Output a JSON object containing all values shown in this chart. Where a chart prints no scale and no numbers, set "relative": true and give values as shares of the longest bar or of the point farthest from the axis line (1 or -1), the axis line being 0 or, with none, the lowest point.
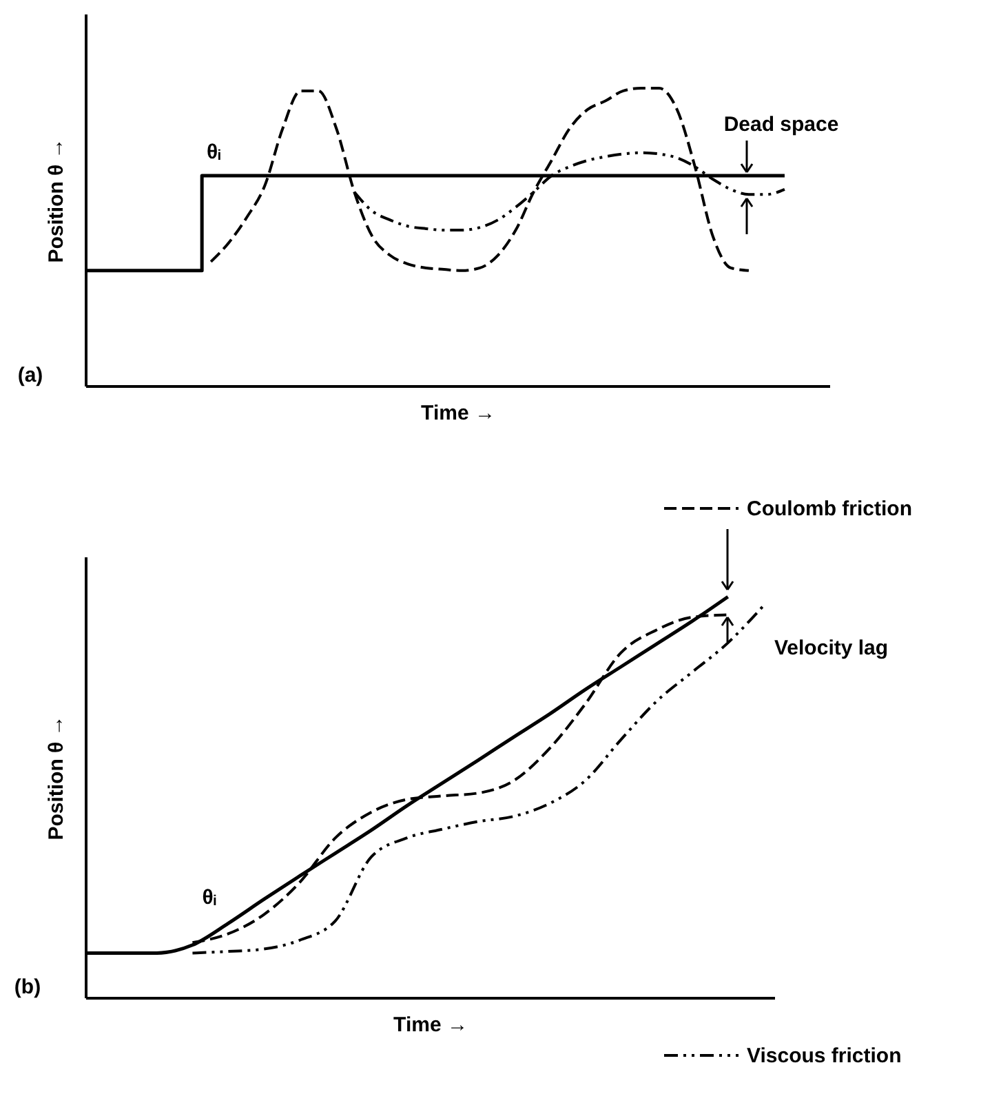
{
  "chart_data": [
    {
      "type": "line",
      "relative": true,
      "tick_labels": false,
      "xlabel": "Time →",
      "ylabel": "Position θ →",
      "categories": [
        null,
        null,
        null,
        null,
        null,
        null,
        null,
        null,
        null,
        null,
        null,
        null,
        null,
        null,
        null,
        null,
        null,
        null,
        null,
        null,
        null,
        null,
        null,
        null,
        null,
        null,
        null,
        null,
        null,
        null,
        null,
        null,
        null,
        null,
        null,
        null,
        null,
        null,
        null,
        null,
        null
      ],
      "series": [
        {
          "type": "step",
          "color": "#000000",
          "line_style": "solid",
          "values": [
            0.387,
            0.387,
            0.387,
            0.387,
            0.387,
            0.387,
            0.387,
            0.706,
            0.706,
            0.706,
            0.706,
            0.706,
            0.706,
            0.706,
            0.706,
            0.706,
            0.706,
            0.706,
            0.706,
            0.706,
            0.706,
            0.706,
            0.706,
            0.706,
            0.706,
            0.706,
            0.706,
            0.706,
            0.706,
            0.706,
            0.706,
            0.706,
            0.706,
            0.706,
            0.706,
            0.706,
            0.706,
            0.706,
            0.706,
            0.706,
            null
          ]
        },
        {
          "color": "#000000",
          "line_style": "dashed",
          "values": [
            null,
            null,
            null,
            null,
            null,
            null,
            null,
            0.417,
            0.481,
            0.566,
            0.672,
            0.864,
            0.991,
            0.991,
            0.864,
            0.651,
            0.502,
            0.438,
            0.409,
            0.396,
            0.391,
            0.387,
            0.396,
            0.438,
            0.523,
            0.651,
            0.757,
            0.864,
            0.928,
            0.957,
            0.991,
            1.0,
            1.0,
            0.928,
            0.736,
            0.502,
            0.396,
            0.387,
            null,
            null,
            null
          ]
        },
        {
          "color": "#000000",
          "line_style": "dotted",
          "values": [
            null,
            null,
            null,
            null,
            null,
            null,
            null,
            null,
            null,
            null,
            null,
            null,
            null,
            null,
            null,
            0.651,
            0.587,
            0.557,
            0.536,
            0.528,
            0.523,
            0.523,
            0.532,
            0.557,
            0.6,
            0.651,
            0.706,
            0.736,
            0.757,
            0.77,
            0.779,
            0.783,
            0.779,
            0.766,
            0.736,
            0.694,
            0.66,
            0.643,
            0.643,
            0.66,
            null
          ]
        }
      ],
      "marker": "none",
      "annotations": [
        "θᵢ",
        "Dead space",
        "(a)"
      ]
    },
    {
      "type": "line",
      "relative": true,
      "tick_labels": false,
      "xlabel": "Time →",
      "ylabel": "Position θ →",
      "categories": [
        null,
        null,
        null,
        null,
        null,
        null,
        null,
        null,
        null,
        null,
        null,
        null,
        null,
        null,
        null,
        null,
        null,
        null,
        null,
        null
      ],
      "series": [
        {
          "color": "#000000",
          "line_style": "solid",
          "values": [
            0.111,
            0.111,
            0.111,
            0.131,
            0.185,
            0.245,
            0.303,
            0.36,
            0.417,
            0.478,
            0.535,
            0.592,
            0.65,
            0.707,
            0.768,
            0.825,
            0.882,
            0.939,
            1.0,
            null
          ]
        },
        {
          "name": "Coulomb friction",
          "color": "#000000",
          "line_style": "dashed",
          "values": [
            null,
            null,
            null,
            0.137,
            0.159,
            0.207,
            0.287,
            0.398,
            0.462,
            0.494,
            0.503,
            0.51,
            0.541,
            0.621,
            0.732,
            0.86,
            0.917,
            0.949,
            0.955,
            null
          ]
        },
        {
          "name": "Viscous friction",
          "color": "#000000",
          "line_style": "dotted",
          "values": [
            null,
            null,
            null,
            0.111,
            0.115,
            0.121,
            0.143,
            0.191,
            0.35,
            0.398,
            0.42,
            0.439,
            0.452,
            0.484,
            0.541,
            0.643,
            0.739,
            0.812,
            0.885,
            0.978
          ]
        }
      ],
      "marker": "none",
      "legend": "right",
      "annotations": [
        "θᵢ",
        "Velocity lag",
        "(b)"
      ]
    }
  ]
}
